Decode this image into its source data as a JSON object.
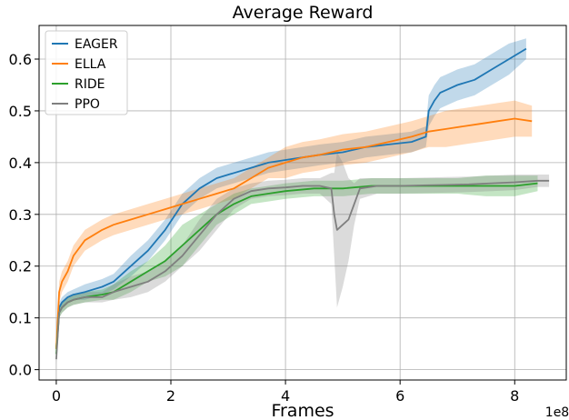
{
  "chart_data": {
    "type": "line",
    "title": "Average Reward",
    "xlabel": "Frames",
    "ylabel": "",
    "x_offset_label": "1e8",
    "xlim": [
      -0.3,
      8.9
    ],
    "ylim": [
      -0.02,
      0.665
    ],
    "xticks": [
      0,
      2,
      4,
      6,
      8
    ],
    "xtick_labels": [
      "0",
      "2",
      "4",
      "6",
      "8"
    ],
    "yticks": [
      0.0,
      0.1,
      0.2,
      0.3,
      0.4,
      0.5,
      0.6
    ],
    "ytick_labels": [
      "0.0",
      "0.1",
      "0.2",
      "0.3",
      "0.4",
      "0.5",
      "0.6"
    ],
    "grid": true,
    "legend_position": "top-left",
    "series": [
      {
        "name": "EAGER",
        "color": "#1f77b4",
        "x": [
          0,
          0.05,
          0.1,
          0.2,
          0.3,
          0.5,
          0.8,
          1.0,
          1.3,
          1.6,
          1.9,
          2.2,
          2.5,
          2.8,
          3.1,
          3.4,
          3.7,
          4.0,
          4.3,
          4.6,
          5.0,
          5.4,
          5.8,
          6.2,
          6.45,
          6.5,
          6.6,
          6.7,
          6.8,
          7.0,
          7.3,
          7.6,
          7.9,
          8.2
        ],
        "y": [
          0.04,
          0.12,
          0.13,
          0.14,
          0.145,
          0.15,
          0.16,
          0.17,
          0.2,
          0.23,
          0.27,
          0.32,
          0.35,
          0.37,
          0.38,
          0.39,
          0.4,
          0.405,
          0.41,
          0.415,
          0.42,
          0.43,
          0.435,
          0.44,
          0.45,
          0.5,
          0.52,
          0.535,
          0.54,
          0.55,
          0.56,
          0.58,
          0.6,
          0.62
        ],
        "band": [
          0.01,
          0.01,
          0.01,
          0.01,
          0.01,
          0.015,
          0.015,
          0.015,
          0.02,
          0.02,
          0.02,
          0.02,
          0.02,
          0.02,
          0.02,
          0.02,
          0.02,
          0.02,
          0.02,
          0.02,
          0.02,
          0.02,
          0.02,
          0.02,
          0.02,
          0.03,
          0.03,
          0.03,
          0.03,
          0.03,
          0.03,
          0.03,
          0.03,
          0.02
        ]
      },
      {
        "name": "ELLA",
        "color": "#ff7f0e",
        "x": [
          0,
          0.05,
          0.1,
          0.2,
          0.3,
          0.5,
          0.8,
          1.0,
          1.3,
          1.6,
          1.9,
          2.2,
          2.5,
          2.8,
          3.1,
          3.4,
          3.7,
          4.0,
          4.3,
          4.6,
          5.0,
          5.4,
          5.8,
          6.2,
          6.5,
          6.8,
          7.1,
          7.4,
          7.7,
          8.0,
          8.3
        ],
        "y": [
          0.04,
          0.15,
          0.17,
          0.19,
          0.22,
          0.25,
          0.27,
          0.28,
          0.29,
          0.3,
          0.31,
          0.32,
          0.33,
          0.34,
          0.35,
          0.37,
          0.39,
          0.4,
          0.41,
          0.415,
          0.425,
          0.43,
          0.44,
          0.45,
          0.46,
          0.465,
          0.47,
          0.475,
          0.48,
          0.485,
          0.48
        ],
        "band": [
          0.01,
          0.02,
          0.02,
          0.02,
          0.02,
          0.02,
          0.02,
          0.02,
          0.02,
          0.02,
          0.02,
          0.02,
          0.02,
          0.02,
          0.02,
          0.02,
          0.02,
          0.03,
          0.03,
          0.03,
          0.03,
          0.03,
          0.03,
          0.03,
          0.03,
          0.035,
          0.035,
          0.035,
          0.035,
          0.035,
          0.03
        ]
      },
      {
        "name": "RIDE",
        "color": "#2ca02c",
        "x": [
          0,
          0.05,
          0.1,
          0.2,
          0.3,
          0.5,
          0.8,
          1.0,
          1.3,
          1.6,
          1.9,
          2.2,
          2.5,
          2.8,
          3.1,
          3.4,
          3.7,
          4.0,
          4.5,
          5.0,
          5.5,
          6.0,
          6.5,
          7.0,
          7.5,
          8.0,
          8.4
        ],
        "y": [
          0.03,
          0.11,
          0.12,
          0.13,
          0.135,
          0.14,
          0.145,
          0.15,
          0.17,
          0.19,
          0.21,
          0.24,
          0.27,
          0.3,
          0.32,
          0.335,
          0.34,
          0.345,
          0.35,
          0.35,
          0.355,
          0.355,
          0.355,
          0.355,
          0.355,
          0.355,
          0.36
        ],
        "band": [
          0.01,
          0.01,
          0.01,
          0.01,
          0.01,
          0.01,
          0.01,
          0.015,
          0.02,
          0.02,
          0.03,
          0.04,
          0.03,
          0.02,
          0.02,
          0.015,
          0.015,
          0.015,
          0.015,
          0.015,
          0.015,
          0.015,
          0.015,
          0.015,
          0.02,
          0.02,
          0.015
        ]
      },
      {
        "name": "PPO",
        "color": "#7f7f7f",
        "x": [
          0,
          0.05,
          0.1,
          0.2,
          0.3,
          0.5,
          0.8,
          1.0,
          1.3,
          1.6,
          1.9,
          2.2,
          2.5,
          2.8,
          3.1,
          3.4,
          3.7,
          4.0,
          4.3,
          4.6,
          4.8,
          4.85,
          4.9,
          5.0,
          5.1,
          5.2,
          5.3,
          5.6,
          6.0,
          6.4,
          6.8,
          7.2,
          7.6,
          8.0,
          8.4,
          8.6
        ],
        "y": [
          0.02,
          0.11,
          0.12,
          0.13,
          0.135,
          0.14,
          0.14,
          0.15,
          0.16,
          0.17,
          0.19,
          0.22,
          0.26,
          0.3,
          0.33,
          0.345,
          0.35,
          0.352,
          0.355,
          0.355,
          0.35,
          0.3,
          0.27,
          0.28,
          0.29,
          0.32,
          0.35,
          0.355,
          0.355,
          0.356,
          0.357,
          0.358,
          0.36,
          0.362,
          0.365,
          0.365
        ],
        "band": [
          0.01,
          0.01,
          0.01,
          0.01,
          0.01,
          0.01,
          0.01,
          0.015,
          0.02,
          0.02,
          0.02,
          0.02,
          0.03,
          0.03,
          0.02,
          0.015,
          0.015,
          0.015,
          0.015,
          0.015,
          0.03,
          0.08,
          0.15,
          0.12,
          0.08,
          0.04,
          0.02,
          0.015,
          0.015,
          0.015,
          0.015,
          0.015,
          0.015,
          0.015,
          0.012,
          0.012
        ]
      }
    ]
  }
}
